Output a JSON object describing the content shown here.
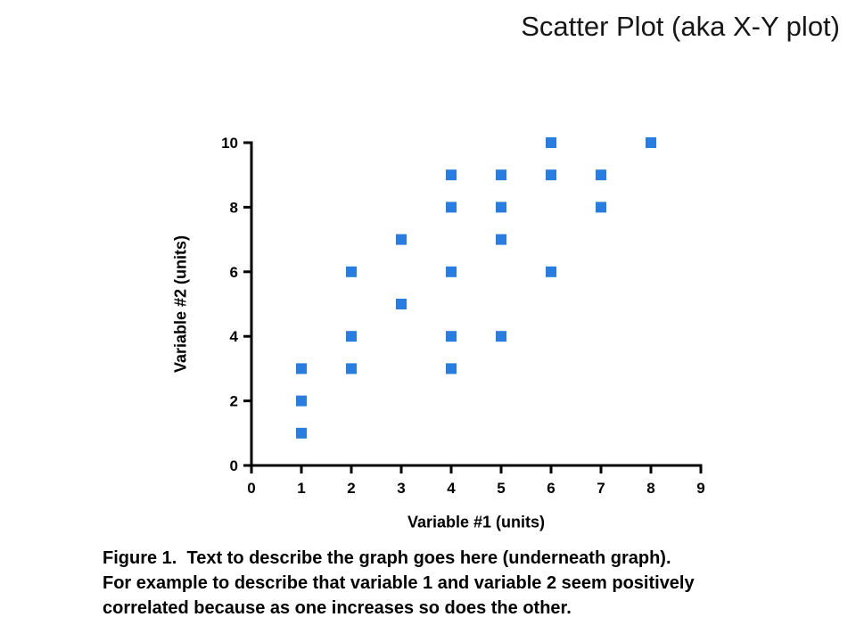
{
  "title": "Scatter Plot (aka X-Y plot)",
  "chart_data": {
    "type": "scatter",
    "title": "Scatter Plot (aka X-Y plot)",
    "xlabel": "Variable #1 (units)",
    "ylabel": "Variable #2 (units)",
    "xlim": [
      0,
      9
    ],
    "ylim": [
      0,
      10
    ],
    "x_ticks": [
      0,
      1,
      2,
      3,
      4,
      5,
      6,
      7,
      8,
      9
    ],
    "y_ticks": [
      0,
      2,
      4,
      6,
      8,
      10
    ],
    "grid": false,
    "legend": "none",
    "marker": "square",
    "marker_color": "#2a7de0",
    "axis_color": "#000000",
    "points": [
      [
        1,
        1
      ],
      [
        1,
        2
      ],
      [
        1,
        3
      ],
      [
        2,
        3
      ],
      [
        2,
        4
      ],
      [
        2,
        6
      ],
      [
        3,
        5
      ],
      [
        3,
        7
      ],
      [
        4,
        3
      ],
      [
        4,
        4
      ],
      [
        4,
        6
      ],
      [
        4,
        8
      ],
      [
        4,
        9
      ],
      [
        5,
        4
      ],
      [
        5,
        7
      ],
      [
        5,
        8
      ],
      [
        5,
        9
      ],
      [
        6,
        6
      ],
      [
        6,
        9
      ],
      [
        6,
        10
      ],
      [
        7,
        8
      ],
      [
        7,
        9
      ],
      [
        8,
        10
      ]
    ]
  },
  "caption": {
    "lines": [
      "Figure 1.  Text to describe the graph goes here (underneath graph).",
      "For example to describe that variable 1 and variable 2 seem positively",
      "correlated because as one increases so does the other."
    ]
  }
}
